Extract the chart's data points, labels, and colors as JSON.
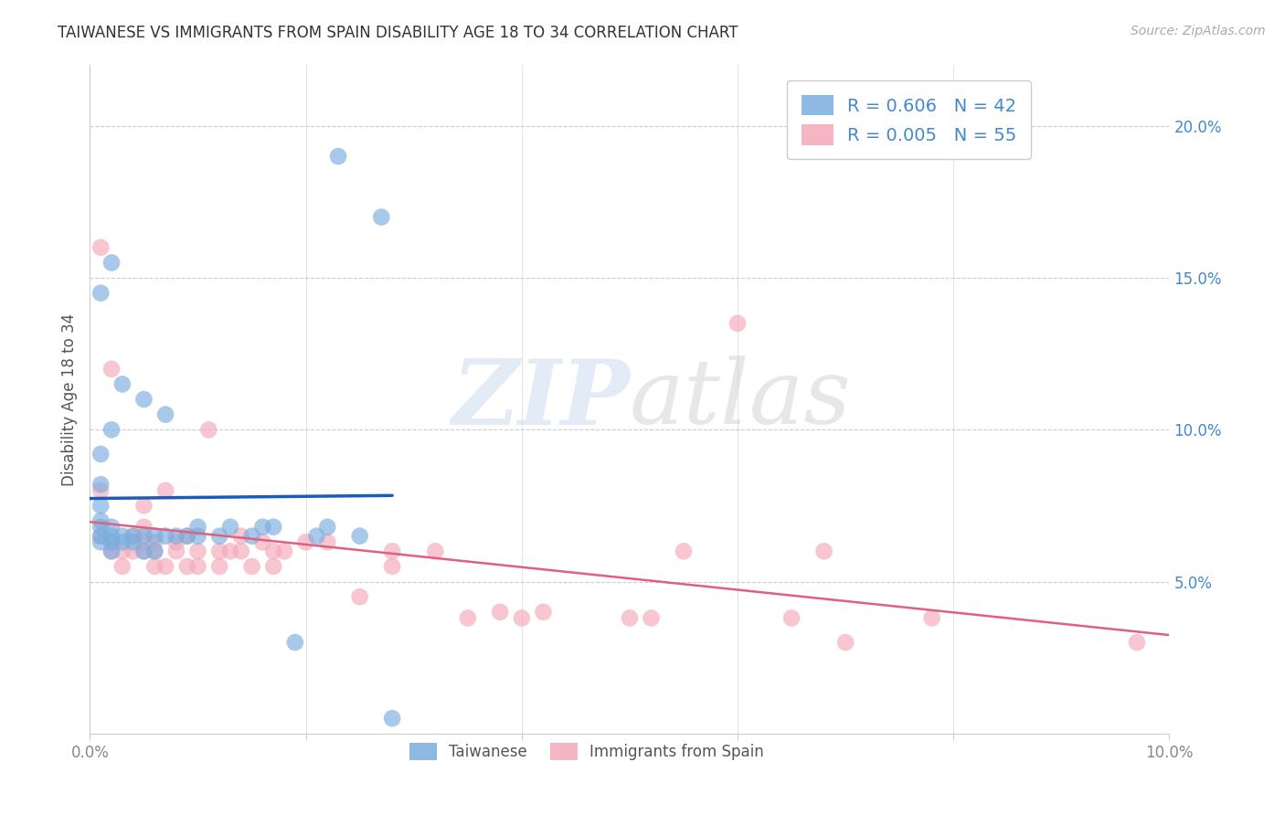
{
  "title": "TAIWANESE VS IMMIGRANTS FROM SPAIN DISABILITY AGE 18 TO 34 CORRELATION CHART",
  "source": "Source: ZipAtlas.com",
  "ylabel": "Disability Age 18 to 34",
  "xlim": [
    0.0,
    0.1
  ],
  "ylim": [
    0.0,
    0.22
  ],
  "y_ticks_right": [
    0.05,
    0.1,
    0.15,
    0.2
  ],
  "y_tick_labels_right": [
    "5.0%",
    "10.0%",
    "15.0%",
    "20.0%"
  ],
  "legend1_label": "R = 0.606   N = 42",
  "legend2_label": "R = 0.005   N = 55",
  "legend_label_taiwanese": "Taiwanese",
  "legend_label_spain": "Immigrants from Spain",
  "color_taiwanese": "#7aadde",
  "color_spain": "#f4a8b8",
  "trendline_taiwanese_color": "#1a5bbf",
  "trendline_spain_color": "#e06080",
  "watermark_zip": "ZIP",
  "watermark_atlas": "atlas",
  "background_color": "#ffffff",
  "grid_color": "#cccccc",
  "taiwanese_x": [
    0.001,
    0.001,
    0.001,
    0.001,
    0.001,
    0.001,
    0.001,
    0.001,
    0.002,
    0.002,
    0.002,
    0.002,
    0.002,
    0.002,
    0.003,
    0.003,
    0.003,
    0.004,
    0.004,
    0.005,
    0.005,
    0.005,
    0.006,
    0.006,
    0.007,
    0.007,
    0.008,
    0.009,
    0.01,
    0.01,
    0.012,
    0.013,
    0.015,
    0.016,
    0.017,
    0.019,
    0.021,
    0.022,
    0.023,
    0.025,
    0.027,
    0.028
  ],
  "taiwanese_y": [
    0.063,
    0.065,
    0.068,
    0.07,
    0.075,
    0.082,
    0.092,
    0.145,
    0.06,
    0.063,
    0.065,
    0.068,
    0.1,
    0.155,
    0.063,
    0.065,
    0.115,
    0.063,
    0.065,
    0.06,
    0.065,
    0.11,
    0.06,
    0.065,
    0.065,
    0.105,
    0.065,
    0.065,
    0.065,
    0.068,
    0.065,
    0.068,
    0.065,
    0.068,
    0.068,
    0.03,
    0.065,
    0.068,
    0.19,
    0.065,
    0.17,
    0.005
  ],
  "spain_x": [
    0.001,
    0.001,
    0.001,
    0.002,
    0.002,
    0.002,
    0.003,
    0.003,
    0.004,
    0.004,
    0.005,
    0.005,
    0.005,
    0.005,
    0.006,
    0.006,
    0.006,
    0.007,
    0.007,
    0.008,
    0.008,
    0.009,
    0.009,
    0.01,
    0.01,
    0.011,
    0.012,
    0.012,
    0.013,
    0.014,
    0.014,
    0.015,
    0.016,
    0.017,
    0.017,
    0.018,
    0.02,
    0.022,
    0.025,
    0.028,
    0.028,
    0.032,
    0.035,
    0.038,
    0.04,
    0.042,
    0.05,
    0.052,
    0.055,
    0.06,
    0.065,
    0.068,
    0.07,
    0.078,
    0.097
  ],
  "spain_y": [
    0.08,
    0.16,
    0.065,
    0.06,
    0.063,
    0.12,
    0.055,
    0.06,
    0.06,
    0.065,
    0.06,
    0.063,
    0.068,
    0.075,
    0.055,
    0.06,
    0.063,
    0.055,
    0.08,
    0.06,
    0.063,
    0.055,
    0.065,
    0.055,
    0.06,
    0.1,
    0.055,
    0.06,
    0.06,
    0.06,
    0.065,
    0.055,
    0.063,
    0.055,
    0.06,
    0.06,
    0.063,
    0.063,
    0.045,
    0.055,
    0.06,
    0.06,
    0.038,
    0.04,
    0.038,
    0.04,
    0.038,
    0.038,
    0.06,
    0.135,
    0.038,
    0.06,
    0.03,
    0.038,
    0.03
  ]
}
